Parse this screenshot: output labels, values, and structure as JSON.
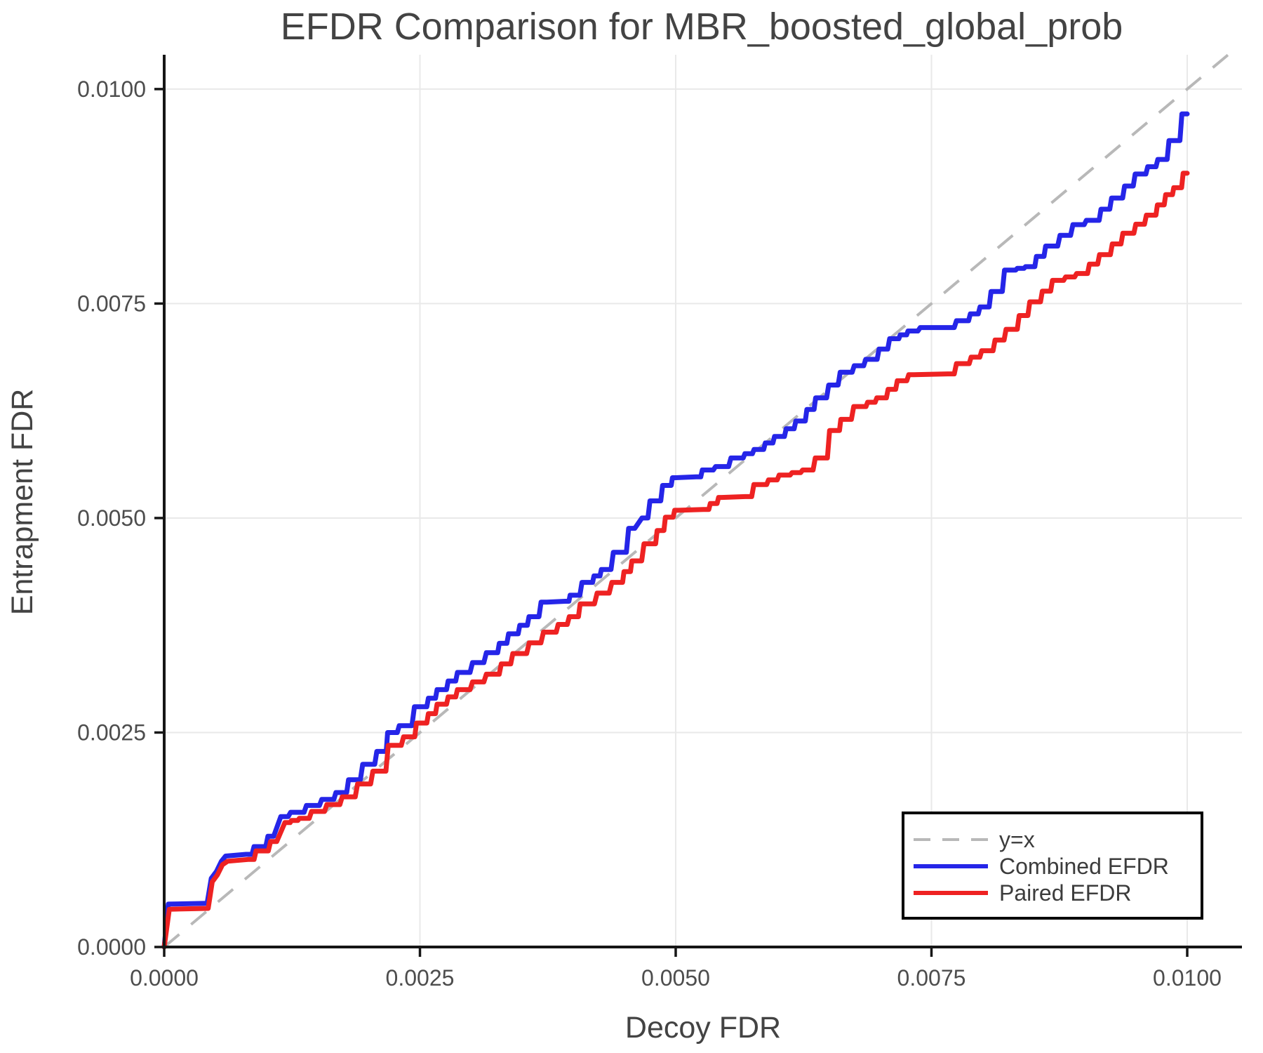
{
  "title": "EFDR Comparison for MBR_boosted_global_prob",
  "axes": {
    "xlabel": "Decoy FDR",
    "ylabel": "Entrapment FDR",
    "x_tick_labels": [
      "0.0000",
      "0.0025",
      "0.0050",
      "0.0075",
      "0.0100"
    ],
    "y_tick_labels": [
      "0.0000",
      "0.0025",
      "0.0050",
      "0.0075",
      "0.0100"
    ],
    "x_tick_values": [
      0,
      0.0025,
      0.005,
      0.0075,
      0.01
    ],
    "y_tick_values": [
      0,
      0.0025,
      0.005,
      0.0075,
      0.01
    ]
  },
  "legend": {
    "items": [
      {
        "label": "y=x",
        "style": "dashed",
        "color": "#b8b8b8"
      },
      {
        "label": "Combined EFDR",
        "style": "solid",
        "color": "#2525e8"
      },
      {
        "label": "Paired EFDR",
        "style": "solid",
        "color": "#ee2222"
      }
    ]
  },
  "colors": {
    "combined": "#2525e8",
    "paired": "#ee2222",
    "identity": "#b8b8b8",
    "grid": "#e9e9e9",
    "spine": "#161616",
    "tick_text": "#4d4d4d",
    "title_text": "#434343"
  },
  "chart_data": {
    "type": "line",
    "title": "EFDR Comparison for MBR_boosted_global_prob",
    "xlabel": "Decoy FDR",
    "ylabel": "Entrapment FDR",
    "xlim": [
      0,
      0.0105
    ],
    "ylim": [
      0,
      0.0104
    ],
    "grid": true,
    "legend_position": "lower right",
    "series": [
      {
        "name": "y=x",
        "type": "identity-dashed",
        "x": [
          0,
          0.0104
        ],
        "y": [
          0,
          0.0104
        ]
      },
      {
        "name": "Combined EFDR",
        "color": "#2525e8",
        "x": [
          0,
          4e-05,
          0.00042,
          0.00046,
          0.00051,
          0.00056,
          0.0006,
          0.0008,
          0.00093,
          0.00107,
          0.00114,
          0.0013,
          0.00145,
          0.0016,
          0.00173,
          0.00185,
          0.002,
          0.00213,
          0.00222,
          0.00235,
          0.00251,
          0.0027,
          0.0029,
          0.0032,
          0.0034,
          0.0036,
          0.00374,
          0.00392,
          0.004,
          0.00414,
          0.0043,
          0.00445,
          0.0046,
          0.00467,
          0.0048,
          0.00492,
          0.005,
          0.0052,
          0.0053,
          0.00545,
          0.0056,
          0.0058,
          0.006,
          0.00621,
          0.0064,
          0.00665,
          0.0069,
          0.00713,
          0.0073,
          0.00745,
          0.00766,
          0.0078,
          0.00801,
          0.00813,
          0.00827,
          0.00845,
          0.00865,
          0.00893,
          0.00907,
          0.0093,
          0.00953,
          0.00975,
          0.00987,
          0.01
        ],
        "y": [
          0,
          0.0005,
          0.00051,
          0.0008,
          0.00088,
          0.001,
          0.00106,
          0.00108,
          0.00117,
          0.00129,
          0.00152,
          0.00157,
          0.00165,
          0.00172,
          0.0018,
          0.00195,
          0.00213,
          0.00228,
          0.0025,
          0.00258,
          0.0028,
          0.003,
          0.0032,
          0.00343,
          0.00365,
          0.00385,
          0.00402,
          0.00403,
          0.0041,
          0.00425,
          0.0044,
          0.0046,
          0.00488,
          0.005,
          0.0052,
          0.00538,
          0.00547,
          0.00548,
          0.00556,
          0.0056,
          0.0057,
          0.0058,
          0.00595,
          0.00613,
          0.0064,
          0.0067,
          0.00685,
          0.00709,
          0.00718,
          0.00722,
          0.00722,
          0.0073,
          0.00746,
          0.00764,
          0.00789,
          0.00793,
          0.00817,
          0.00842,
          0.00847,
          0.00873,
          0.00901,
          0.00918,
          0.0094,
          0.00971
        ]
      },
      {
        "name": "Paired EFDR",
        "color": "#ee2222",
        "x": [
          0,
          5e-05,
          0.00043,
          0.00047,
          0.00052,
          0.00057,
          0.00062,
          0.00082,
          0.00095,
          0.0011,
          0.00118,
          0.00135,
          0.0015,
          0.00165,
          0.0018,
          0.00195,
          0.0021,
          0.00225,
          0.0024,
          0.00251,
          0.0027,
          0.0029,
          0.0032,
          0.00345,
          0.00376,
          0.004,
          0.00411,
          0.00443,
          0.0046,
          0.00475,
          0.00493,
          0.00503,
          0.00527,
          0.00545,
          0.00568,
          0.00582,
          0.00605,
          0.00628,
          0.00642,
          0.00656,
          0.00665,
          0.0068,
          0.007,
          0.0072,
          0.00733,
          0.00766,
          0.0078,
          0.00803,
          0.00827,
          0.0085,
          0.00872,
          0.00896,
          0.00918,
          0.00941,
          0.00964,
          0.00982,
          0.0099,
          0.01
        ],
        "y": [
          0,
          0.00044,
          0.00045,
          0.00076,
          0.00084,
          0.00096,
          0.001,
          0.00102,
          0.00112,
          0.00123,
          0.00145,
          0.0015,
          0.00158,
          0.00166,
          0.00175,
          0.0019,
          0.00205,
          0.00235,
          0.00245,
          0.00261,
          0.00283,
          0.003,
          0.00318,
          0.00342,
          0.00367,
          0.00385,
          0.004,
          0.00425,
          0.0045,
          0.0047,
          0.00501,
          0.00509,
          0.0051,
          0.00524,
          0.00525,
          0.00539,
          0.0055,
          0.00556,
          0.0057,
          0.00602,
          0.00615,
          0.0063,
          0.0064,
          0.0066,
          0.00667,
          0.00668,
          0.0068,
          0.00695,
          0.0072,
          0.00752,
          0.00777,
          0.00785,
          0.00807,
          0.00832,
          0.00853,
          0.00877,
          0.00885,
          0.00902
        ]
      }
    ]
  }
}
